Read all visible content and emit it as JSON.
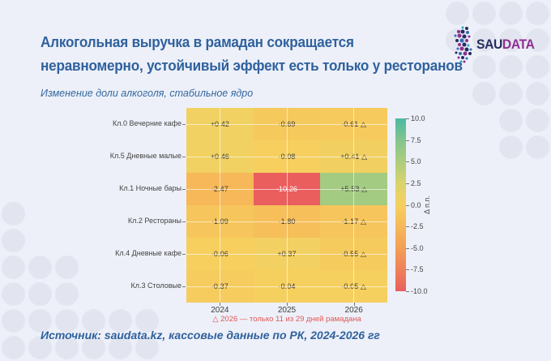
{
  "page": {
    "background_color": "#edf0f8",
    "dot_pattern_color": "#e2e5ef"
  },
  "header": {
    "title_line1": "Алкогольная выручка в рамадан сокращается",
    "title_line2": "неравномерно, устойчивый эффект есть только у ресторанов",
    "subtitle": "Изменение доли алкоголя, стабильное ядро",
    "accent_color": "#2f619e"
  },
  "logo": {
    "text_primary": "SAU",
    "text_secondary": "DATA",
    "primary_color": "#262c5e",
    "secondary_color": "#8e2e90"
  },
  "chart_data": {
    "type": "heatmap",
    "x": [
      "2024",
      "2025",
      "2026"
    ],
    "y": [
      "Кл.0 Вечерние кафе",
      "Кл.5 Дневные малые",
      "Кл.1 Ночные бары",
      "Кл.2 Рестораны",
      "Кл.4 Дневные кафе",
      "Кл.3 Столовые"
    ],
    "z": [
      [
        0.42,
        -0.69,
        -0.61
      ],
      [
        0.46,
        -0.08,
        0.41
      ],
      [
        -2.47,
        -10.26,
        5.53
      ],
      [
        -1.09,
        -1.8,
        -1.17
      ],
      [
        -0.06,
        0.37,
        -0.55
      ],
      [
        -0.37,
        -0.04,
        -0.05
      ]
    ],
    "cell_labels": [
      [
        "+0.42",
        "-0.69",
        "-0.61 △"
      ],
      [
        "+0.46",
        "-0.08",
        "+0.41 △"
      ],
      [
        "-2.47",
        "-10.26",
        "+5.53 △"
      ],
      [
        "-1.09",
        "-1.80",
        "-1.17 △"
      ],
      [
        "-0.06",
        "+0.37",
        "-0.55 △"
      ],
      [
        "-0.37",
        "-0.04",
        "-0.05 △"
      ]
    ],
    "zmin": -10,
    "zmax": 10,
    "colorscale": [
      [
        -10,
        "#ea5e5e"
      ],
      [
        -7.5,
        "#ef815a"
      ],
      [
        -5,
        "#f39f56"
      ],
      [
        -2.5,
        "#f6b858"
      ],
      [
        0,
        "#f6d05f"
      ],
      [
        2.5,
        "#d9d36b"
      ],
      [
        5,
        "#accd7f"
      ],
      [
        7.5,
        "#83c48d"
      ],
      [
        10,
        "#4ab9a2"
      ]
    ],
    "colorbar_ticks": [
      "10.0",
      "7.5",
      "5.0",
      "2.5",
      "0.0",
      "-2.5",
      "-5.0",
      "-7.5",
      "-10.0"
    ],
    "colorbar_title": "Δ п.п.",
    "footnote": "△ 2026 — только 11 из 29 дней рамадана",
    "footnote_color": "#e25757",
    "grid": "white gridlines through cell centers",
    "legend_position": "right colorbar"
  },
  "source": {
    "text": "Источник: saudata.kz, кассовые данные по РК, 2024-2026 гг"
  }
}
